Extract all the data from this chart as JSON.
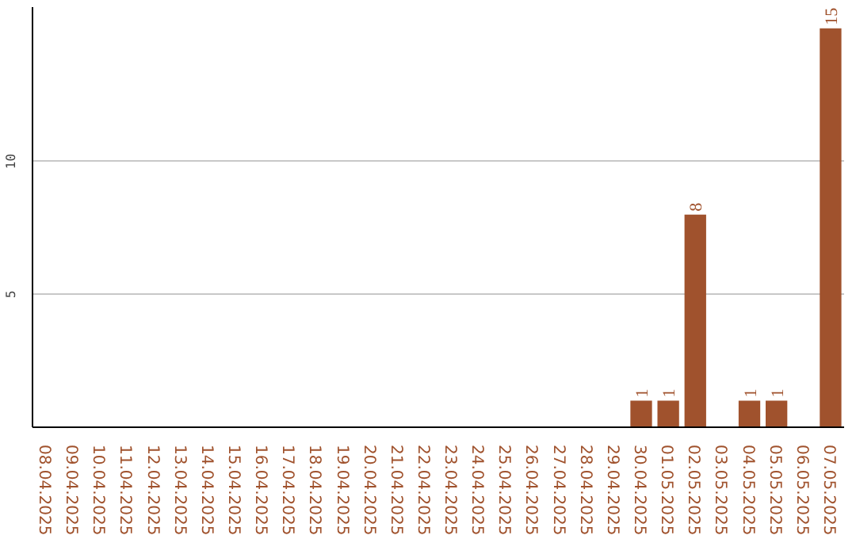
{
  "chart_data": {
    "type": "bar",
    "categories": [
      "08.04.2025",
      "09.04.2025",
      "10.04.2025",
      "11.04.2025",
      "12.04.2025",
      "13.04.2025",
      "14.04.2025",
      "15.04.2025",
      "16.04.2025",
      "17.04.2025",
      "18.04.2025",
      "19.04.2025",
      "20.04.2025",
      "21.04.2025",
      "22.04.2025",
      "23.04.2025",
      "24.04.2025",
      "25.04.2025",
      "26.04.2025",
      "27.04.2025",
      "28.04.2025",
      "29.04.2025",
      "30.04.2025",
      "01.05.2025",
      "02.05.2025",
      "03.05.2025",
      "04.05.2025",
      "05.05.2025",
      "06.05.2025",
      "07.05.2025"
    ],
    "values": [
      0,
      0,
      0,
      0,
      0,
      0,
      0,
      0,
      0,
      0,
      0,
      0,
      0,
      0,
      0,
      0,
      0,
      0,
      0,
      0,
      0,
      0,
      1,
      1,
      8,
      0,
      1,
      1,
      0,
      15
    ],
    "value_labels": [
      null,
      null,
      null,
      null,
      null,
      null,
      null,
      null,
      null,
      null,
      null,
      null,
      null,
      null,
      null,
      null,
      null,
      null,
      null,
      null,
      null,
      null,
      "1",
      "1",
      "8",
      null,
      "1",
      "1",
      null,
      "15"
    ],
    "color": "#a0522d",
    "ylim": [
      0,
      15.8
    ],
    "yticks": [
      5,
      10
    ],
    "grid": "y"
  }
}
